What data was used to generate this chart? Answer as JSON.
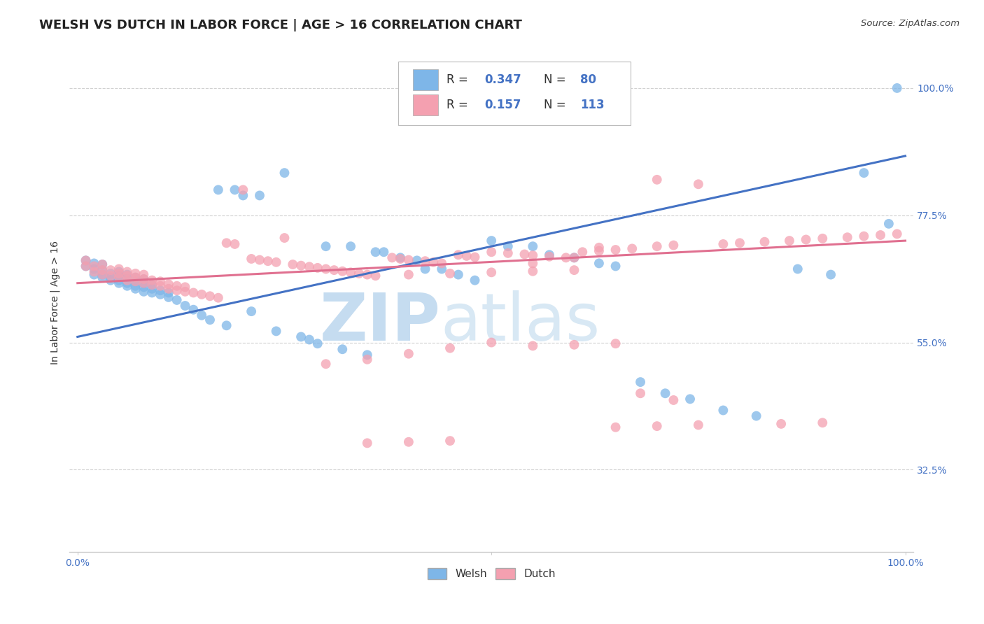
{
  "title": "WELSH VS DUTCH IN LABOR FORCE | AGE > 16 CORRELATION CHART",
  "source_text": "Source: ZipAtlas.com",
  "ylabel": "In Labor Force | Age > 16",
  "welsh_R": 0.347,
  "welsh_N": 80,
  "dutch_R": 0.157,
  "dutch_N": 113,
  "welsh_color": "#7EB6E8",
  "dutch_color": "#F4A0B0",
  "welsh_line_color": "#4472C4",
  "dutch_line_color": "#E07090",
  "watermark_zip_color": "#B8D8F0",
  "watermark_atlas_color": "#C8D8E8",
  "ytick_vals": [
    0.325,
    0.55,
    0.775,
    1.0
  ],
  "ytick_labels": [
    "32.5%",
    "55.0%",
    "77.5%",
    "100.0%"
  ],
  "xtick_labels": [
    "0.0%",
    "100.0%"
  ],
  "xlim": [
    -0.01,
    1.01
  ],
  "ylim": [
    0.18,
    1.06
  ],
  "welsh_x": [
    0.01,
    0.01,
    0.02,
    0.02,
    0.02,
    0.03,
    0.03,
    0.03,
    0.03,
    0.04,
    0.04,
    0.04,
    0.05,
    0.05,
    0.05,
    0.05,
    0.06,
    0.06,
    0.06,
    0.06,
    0.07,
    0.07,
    0.07,
    0.07,
    0.08,
    0.08,
    0.08,
    0.08,
    0.09,
    0.09,
    0.09,
    0.1,
    0.1,
    0.11,
    0.11,
    0.12,
    0.13,
    0.14,
    0.15,
    0.16,
    0.17,
    0.18,
    0.19,
    0.2,
    0.21,
    0.22,
    0.24,
    0.25,
    0.27,
    0.28,
    0.29,
    0.3,
    0.32,
    0.33,
    0.35,
    0.36,
    0.37,
    0.39,
    0.41,
    0.42,
    0.44,
    0.46,
    0.48,
    0.5,
    0.52,
    0.55,
    0.57,
    0.6,
    0.63,
    0.65,
    0.68,
    0.71,
    0.74,
    0.78,
    0.82,
    0.87,
    0.91,
    0.95,
    0.98,
    0.99
  ],
  "welsh_y": [
    0.685,
    0.695,
    0.67,
    0.68,
    0.69,
    0.665,
    0.67,
    0.678,
    0.688,
    0.66,
    0.665,
    0.672,
    0.655,
    0.66,
    0.668,
    0.675,
    0.65,
    0.655,
    0.663,
    0.67,
    0.645,
    0.65,
    0.658,
    0.665,
    0.64,
    0.648,
    0.655,
    0.662,
    0.638,
    0.645,
    0.652,
    0.635,
    0.642,
    0.63,
    0.638,
    0.625,
    0.615,
    0.608,
    0.598,
    0.59,
    0.82,
    0.58,
    0.82,
    0.81,
    0.605,
    0.81,
    0.57,
    0.85,
    0.56,
    0.555,
    0.548,
    0.72,
    0.538,
    0.72,
    0.528,
    0.71,
    0.71,
    0.7,
    0.695,
    0.68,
    0.68,
    0.67,
    0.66,
    0.73,
    0.72,
    0.72,
    0.705,
    0.7,
    0.69,
    0.685,
    0.48,
    0.46,
    0.45,
    0.43,
    0.42,
    0.68,
    0.67,
    0.85,
    0.76,
    1.0
  ],
  "dutch_x": [
    0.01,
    0.01,
    0.02,
    0.02,
    0.03,
    0.03,
    0.03,
    0.04,
    0.04,
    0.05,
    0.05,
    0.05,
    0.06,
    0.06,
    0.06,
    0.07,
    0.07,
    0.07,
    0.08,
    0.08,
    0.08,
    0.09,
    0.09,
    0.1,
    0.1,
    0.11,
    0.11,
    0.12,
    0.12,
    0.13,
    0.13,
    0.14,
    0.15,
    0.16,
    0.17,
    0.18,
    0.19,
    0.2,
    0.21,
    0.22,
    0.23,
    0.24,
    0.25,
    0.26,
    0.27,
    0.28,
    0.29,
    0.3,
    0.31,
    0.32,
    0.33,
    0.34,
    0.35,
    0.36,
    0.38,
    0.39,
    0.4,
    0.42,
    0.43,
    0.44,
    0.46,
    0.47,
    0.48,
    0.5,
    0.52,
    0.54,
    0.55,
    0.57,
    0.59,
    0.61,
    0.63,
    0.65,
    0.67,
    0.7,
    0.72,
    0.75,
    0.78,
    0.8,
    0.83,
    0.86,
    0.88,
    0.9,
    0.93,
    0.95,
    0.97,
    0.99,
    0.7,
    0.55,
    0.6,
    0.63,
    0.35,
    0.4,
    0.45,
    0.5,
    0.3,
    0.68,
    0.72,
    0.55,
    0.6,
    0.65,
    0.4,
    0.45,
    0.5,
    0.55,
    0.6,
    0.65,
    0.7,
    0.75,
    0.85,
    0.9,
    0.35,
    0.4,
    0.45
  ],
  "dutch_y": [
    0.685,
    0.695,
    0.675,
    0.685,
    0.67,
    0.678,
    0.688,
    0.668,
    0.678,
    0.665,
    0.672,
    0.68,
    0.66,
    0.668,
    0.675,
    0.658,
    0.665,
    0.672,
    0.655,
    0.662,
    0.67,
    0.652,
    0.66,
    0.65,
    0.658,
    0.645,
    0.653,
    0.642,
    0.65,
    0.64,
    0.648,
    0.638,
    0.635,
    0.632,
    0.629,
    0.726,
    0.724,
    0.82,
    0.698,
    0.696,
    0.694,
    0.692,
    0.735,
    0.688,
    0.686,
    0.684,
    0.682,
    0.68,
    0.678,
    0.676,
    0.674,
    0.672,
    0.67,
    0.668,
    0.7,
    0.698,
    0.696,
    0.694,
    0.692,
    0.69,
    0.705,
    0.703,
    0.701,
    0.71,
    0.708,
    0.706,
    0.704,
    0.702,
    0.7,
    0.71,
    0.712,
    0.714,
    0.716,
    0.72,
    0.722,
    0.83,
    0.724,
    0.726,
    0.728,
    0.73,
    0.732,
    0.734,
    0.736,
    0.738,
    0.74,
    0.742,
    0.838,
    0.69,
    0.7,
    0.718,
    0.52,
    0.53,
    0.54,
    0.55,
    0.512,
    0.46,
    0.448,
    0.544,
    0.546,
    0.548,
    0.67,
    0.672,
    0.674,
    0.676,
    0.678,
    0.4,
    0.402,
    0.404,
    0.406,
    0.408,
    0.372,
    0.374,
    0.376
  ]
}
